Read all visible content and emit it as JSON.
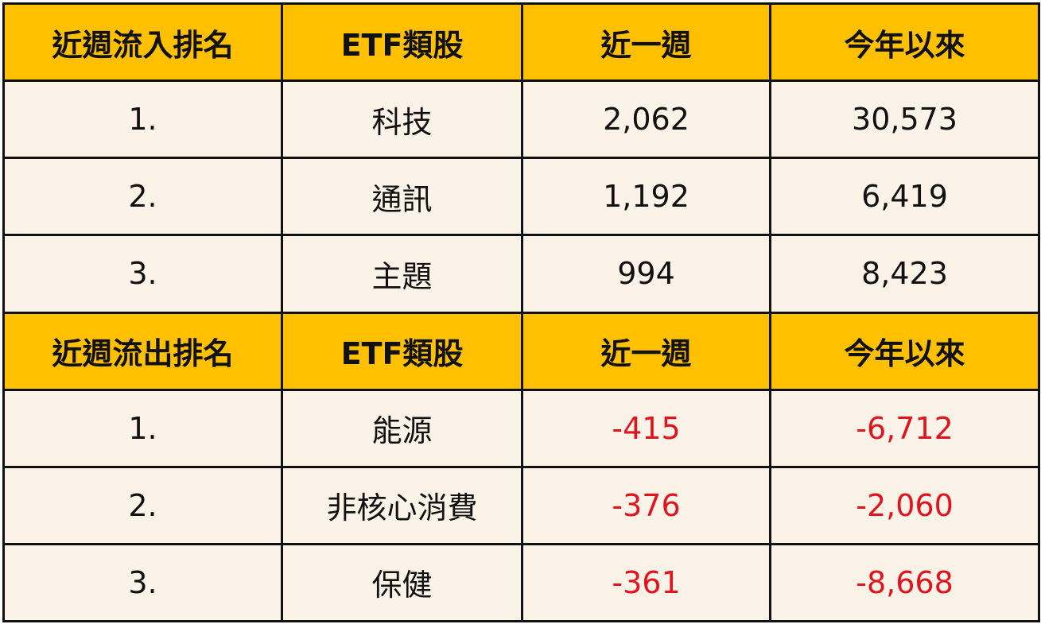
{
  "table": {
    "sections": [
      {
        "header": [
          "近週流入排名",
          "ETF類股",
          "近一週",
          "今年以來"
        ],
        "rows": [
          [
            "1.",
            "科技",
            "2,062",
            "30,573"
          ],
          [
            "2.",
            "通訊",
            "1,192",
            "6,419"
          ],
          [
            "3.",
            "主題",
            "994",
            "8,423"
          ]
        ]
      },
      {
        "header": [
          "近週流出排名",
          "ETF類股",
          "近一週",
          "今年以來"
        ],
        "rows": [
          [
            "1.",
            "能源",
            "-415",
            "-6,712"
          ],
          [
            "2.",
            "非核心消費",
            "-376",
            "-2,060"
          ],
          [
            "3.",
            "保健",
            "-361",
            "-8,668"
          ]
        ]
      }
    ]
  }
}
